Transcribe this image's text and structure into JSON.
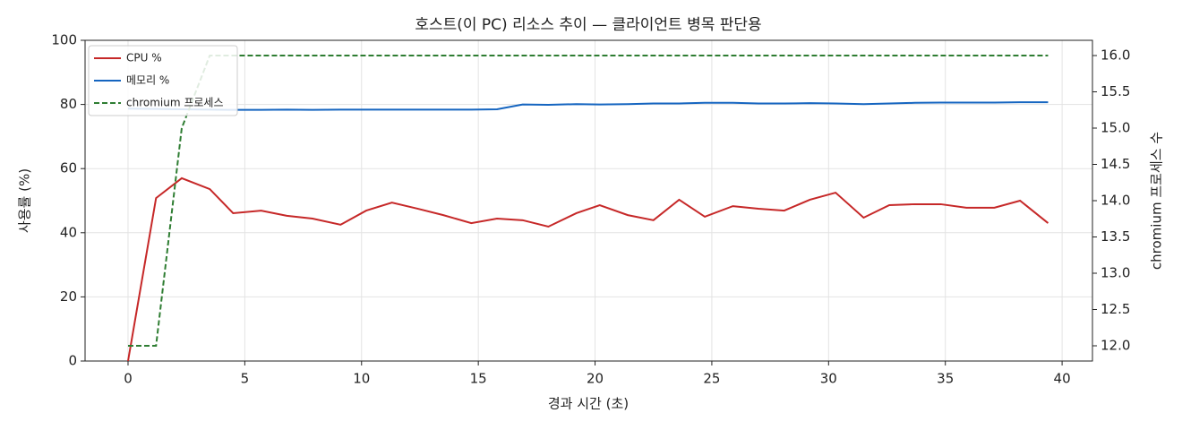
{
  "chart_data": {
    "type": "line",
    "title": "호스트(이 PC) 리소스 추이 — 클라이언트 병목 판단용",
    "xlabel": "경과 시간 (초)",
    "ylabel": "사용률 (%)",
    "y2label": "chromium 프로세스 수",
    "x": [
      0,
      1.2,
      2.3,
      3.5,
      4.5,
      5.7,
      6.8,
      7.9,
      9.1,
      10.2,
      11.3,
      12.4,
      13.5,
      14.7,
      15.8,
      16.9,
      18.0,
      19.2,
      20.2,
      21.4,
      22.5,
      23.6,
      24.7,
      25.9,
      27.0,
      28.1,
      29.2,
      30.3,
      31.5,
      32.6,
      33.7,
      34.8,
      35.9,
      37.1,
      38.2,
      39.4
    ],
    "series": [
      {
        "name": "CPU %",
        "color": "#c62828",
        "axis": "y",
        "dash": false,
        "values": [
          0,
          50.8,
          57,
          53.6,
          46.1,
          46.9,
          45.3,
          44.4,
          42.5,
          46.9,
          49.4,
          47.5,
          45.5,
          43,
          44.4,
          43.9,
          41.9,
          46.1,
          48.6,
          45.5,
          43.9,
          50.3,
          45,
          48.3,
          47.5,
          46.9,
          50.3,
          52.5,
          44.7,
          48.6,
          48.9,
          48.9,
          47.8,
          47.8,
          50,
          43
        ]
      },
      {
        "name": "메모리 %",
        "color": "#1565c0",
        "axis": "y",
        "dash": false,
        "values": [
          78.7,
          78.6,
          78.5,
          78.4,
          78.3,
          78.3,
          78.4,
          78.3,
          78.4,
          78.4,
          78.4,
          78.4,
          78.4,
          78.4,
          78.5,
          80.0,
          79.9,
          80.1,
          80.0,
          80.1,
          80.3,
          80.3,
          80.5,
          80.5,
          80.3,
          80.3,
          80.4,
          80.3,
          80.1,
          80.3,
          80.5,
          80.6,
          80.6,
          80.6,
          80.7,
          80.7
        ]
      },
      {
        "name": "chromium 프로세스",
        "color": "#2e7d32",
        "axis": "y2",
        "dash": true,
        "values": [
          12,
          12,
          15,
          16,
          16,
          16,
          16,
          16,
          16,
          16,
          16,
          16,
          16,
          16,
          16,
          16,
          16,
          16,
          16,
          16,
          16,
          16,
          16,
          16,
          16,
          16,
          16,
          16,
          16,
          16,
          16,
          16,
          16,
          16,
          16,
          16
        ]
      }
    ],
    "xlim": [
      -1.84,
      41.3
    ],
    "xticks": [
      0,
      5,
      10,
      15,
      20,
      25,
      30,
      35,
      40
    ],
    "ylim": [
      0,
      100
    ],
    "yticks": [
      0,
      20,
      40,
      60,
      80,
      100
    ],
    "y2lim": [
      11.79,
      16.21
    ],
    "y2ticks": [
      {
        "value": 12,
        "label": "12.0"
      },
      12.5,
      {
        "value": 13,
        "label": "13.0"
      },
      13.5,
      {
        "value": 14,
        "label": "14.0"
      },
      14.5,
      {
        "value": 15,
        "label": "15.0"
      },
      15.5,
      {
        "value": 16,
        "label": "16.0"
      }
    ],
    "grid": true,
    "legend": "upper-left"
  }
}
